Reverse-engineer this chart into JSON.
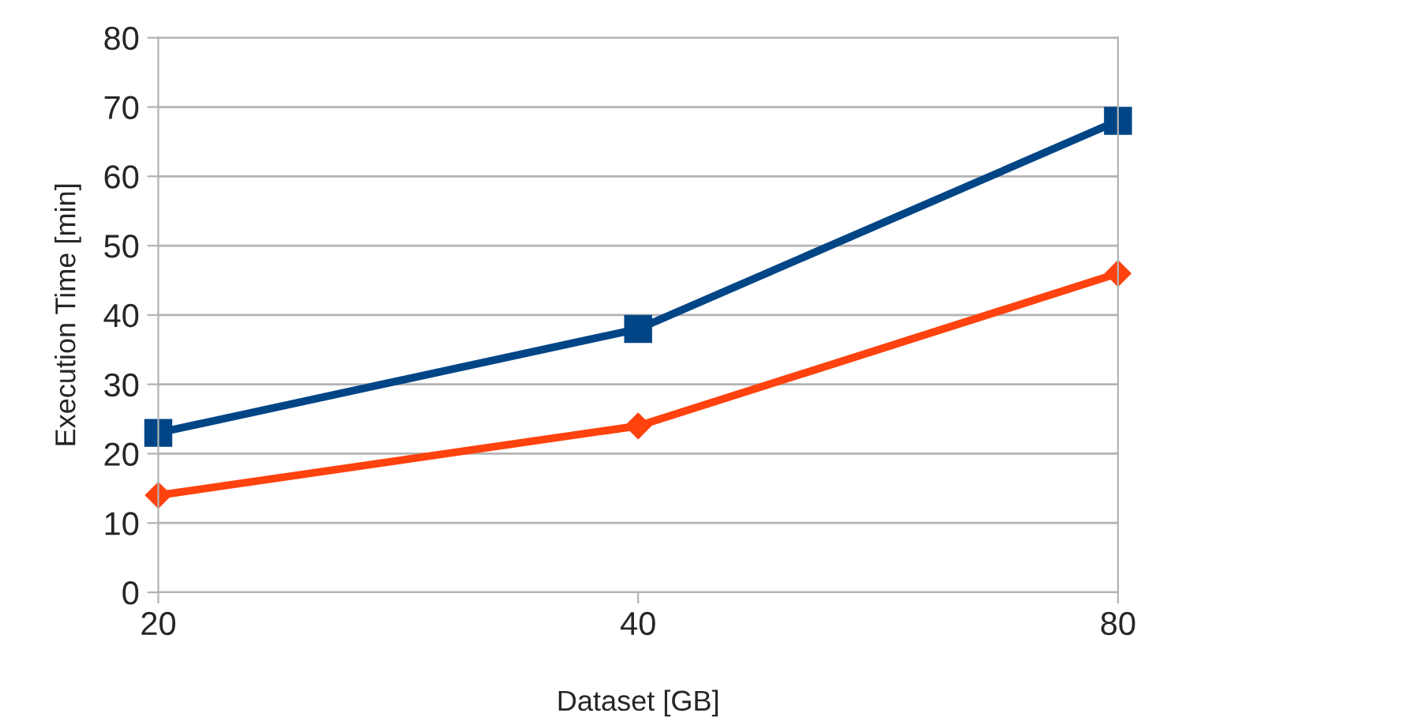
{
  "chart_data": {
    "type": "line",
    "xlabel": "Dataset [GB]",
    "ylabel": "Execution Time [min]",
    "categories": [
      "20",
      "40",
      "80"
    ],
    "series": [
      {
        "color": "#004586",
        "values": [
          23,
          38,
          68
        ],
        "marker": "square"
      },
      {
        "color": "#ff420e",
        "values": [
          14,
          24,
          46
        ],
        "marker": "diamond"
      }
    ],
    "ylim": [
      0,
      80
    ],
    "yticks": [
      0,
      10,
      20,
      30,
      40,
      50,
      60,
      70,
      80
    ],
    "grid": "y"
  }
}
